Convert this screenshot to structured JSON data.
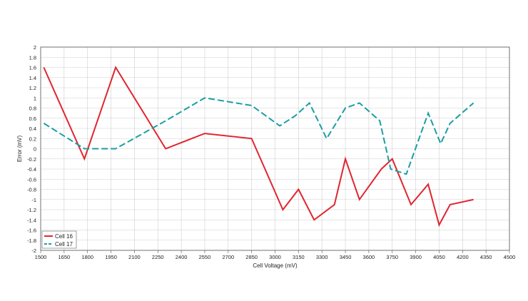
{
  "chart_data": {
    "type": "line",
    "title": "",
    "xlabel": "Cell Voltage (mV)",
    "ylabel": "Error (mV)",
    "xlim": [
      1500,
      4500
    ],
    "ylim": [
      -2,
      2
    ],
    "x_ticks": [
      1500,
      1650,
      1800,
      1950,
      2100,
      2250,
      2400,
      2550,
      2700,
      2850,
      3000,
      3150,
      3300,
      3450,
      3600,
      3750,
      3900,
      4050,
      4200,
      4350,
      4500
    ],
    "y_ticks": [
      2,
      1.8,
      1.6,
      1.4,
      1.2,
      1,
      0.8,
      0.6,
      0.4,
      0.2,
      0,
      -0.2,
      -0.4,
      -0.6,
      -0.8,
      -1,
      -1.2,
      -1.4,
      -1.6,
      -1.8,
      -2
    ],
    "grid": true,
    "legend_position": "bottom-left",
    "series": [
      {
        "name": "Cell 16",
        "color": "#e0262f",
        "style": "solid",
        "points": [
          [
            1520,
            1.6
          ],
          [
            1780,
            -0.2
          ],
          [
            1980,
            1.6
          ],
          [
            2300,
            0.0
          ],
          [
            2550,
            0.3
          ],
          [
            2850,
            0.2
          ],
          [
            3050,
            -1.2
          ],
          [
            3150,
            -0.8
          ],
          [
            3250,
            -1.4
          ],
          [
            3380,
            -1.1
          ],
          [
            3450,
            -0.2
          ],
          [
            3540,
            -1.0
          ],
          [
            3680,
            -0.4
          ],
          [
            3750,
            -0.2
          ],
          [
            3870,
            -1.1
          ],
          [
            3980,
            -0.7
          ],
          [
            4050,
            -1.5
          ],
          [
            4120,
            -1.1
          ],
          [
            4270,
            -1.0
          ]
        ]
      },
      {
        "name": "Cell 17",
        "color": "#1c9ea2",
        "style": "dashed",
        "points": [
          [
            1520,
            0.5
          ],
          [
            1780,
            0.0
          ],
          [
            1980,
            0.0
          ],
          [
            2300,
            0.55
          ],
          [
            2550,
            1.0
          ],
          [
            2850,
            0.85
          ],
          [
            3030,
            0.45
          ],
          [
            3130,
            0.65
          ],
          [
            3220,
            0.9
          ],
          [
            3330,
            0.2
          ],
          [
            3450,
            0.8
          ],
          [
            3540,
            0.9
          ],
          [
            3670,
            0.55
          ],
          [
            3740,
            -0.4
          ],
          [
            3840,
            -0.5
          ],
          [
            3980,
            0.7
          ],
          [
            4060,
            0.1
          ],
          [
            4120,
            0.5
          ],
          [
            4270,
            0.9
          ]
        ]
      }
    ]
  }
}
